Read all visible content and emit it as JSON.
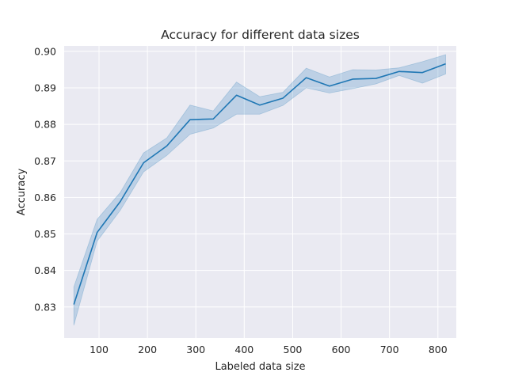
{
  "chart_data": {
    "type": "line",
    "title": "Accuracy for different data sizes",
    "xlabel": "Labeled data size",
    "ylabel": "Accuracy",
    "xlim": [
      28,
      838
    ],
    "ylim": [
      0.8215,
      0.9015
    ],
    "xticks": [
      100,
      200,
      300,
      400,
      500,
      600,
      700,
      800
    ],
    "yticks": [
      0.83,
      0.84,
      0.85,
      0.86,
      0.87,
      0.88,
      0.89,
      0.9
    ],
    "ytick_labels": [
      "0.83",
      "0.84",
      "0.85",
      "0.86",
      "0.87",
      "0.88",
      "0.89",
      "0.90"
    ],
    "grid": true,
    "colors": {
      "background": "#eaeaf2",
      "grid": "#ffffff",
      "line": "#1f77b4",
      "band": "#1f77b4"
    },
    "series": [
      {
        "x": [
          48,
          96,
          144,
          192,
          240,
          288,
          336,
          384,
          432,
          480,
          528,
          576,
          624,
          672,
          720,
          768,
          816
        ],
        "y": [
          0.8307,
          0.8504,
          0.8589,
          0.8695,
          0.8741,
          0.8813,
          0.8815,
          0.888,
          0.8853,
          0.8872,
          0.8928,
          0.8905,
          0.8924,
          0.8926,
          0.8945,
          0.8942,
          0.8966
        ],
        "lower": [
          0.825,
          0.848,
          0.8565,
          0.867,
          0.8715,
          0.8773,
          0.879,
          0.8828,
          0.8828,
          0.8852,
          0.89,
          0.8886,
          0.8898,
          0.8911,
          0.8934,
          0.8913,
          0.8938
        ],
        "upper": [
          0.8355,
          0.854,
          0.8614,
          0.8722,
          0.8763,
          0.8853,
          0.8837,
          0.8916,
          0.8876,
          0.8888,
          0.8954,
          0.893,
          0.895,
          0.8949,
          0.8955,
          0.8972,
          0.8991
        ]
      }
    ]
  }
}
